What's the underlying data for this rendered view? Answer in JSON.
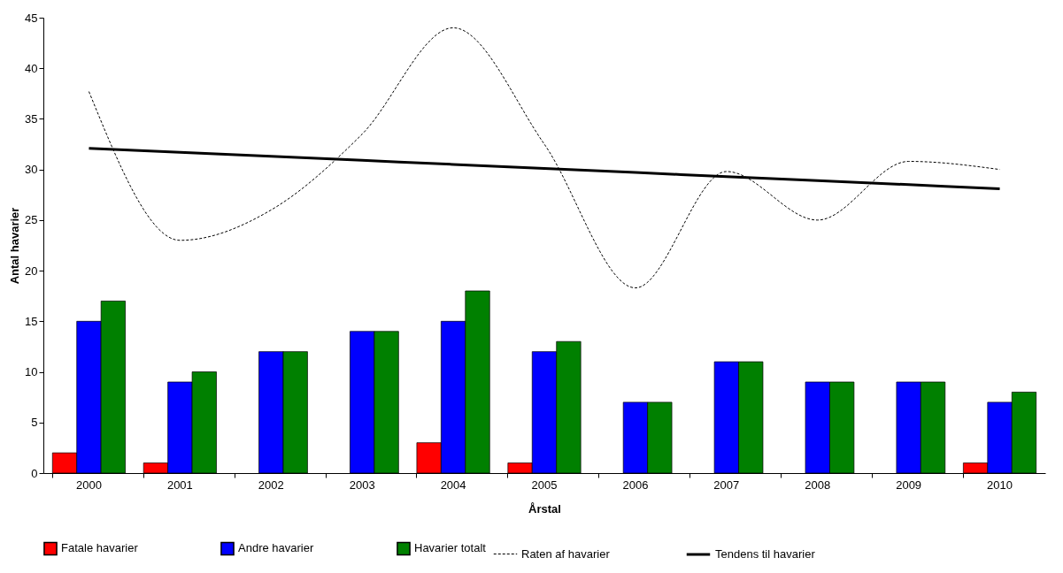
{
  "chart_data": {
    "type": "bar",
    "xlabel": "Årstal",
    "ylabel": "Antal havarier",
    "categories": [
      "2000",
      "2001",
      "2002",
      "2003",
      "2004",
      "2005",
      "2006",
      "2007",
      "2008",
      "2009",
      "2010"
    ],
    "series": [
      {
        "name": "Fatale havarier",
        "color": "#ff0000",
        "values": [
          2,
          1,
          null,
          null,
          3,
          1,
          null,
          null,
          null,
          null,
          1
        ]
      },
      {
        "name": "Andre havarier",
        "color": "#0000ff",
        "values": [
          15,
          9,
          12,
          14,
          15,
          12,
          7,
          11,
          9,
          9,
          7
        ]
      },
      {
        "name": "Havarier totalt",
        "color": "#008000",
        "values": [
          17,
          10,
          12,
          14,
          18,
          13,
          7,
          11,
          9,
          9,
          8
        ]
      },
      {
        "name": "Raten af havarier",
        "type": "line",
        "line_style": "dashed",
        "color": "#000000",
        "values": [
          37.7,
          23,
          26,
          33.5,
          44,
          32.5,
          18.3,
          29.8,
          25,
          30.8,
          30
        ]
      },
      {
        "name": "Tendens til havarier",
        "type": "line",
        "line_style": "solid",
        "color": "#000000",
        "values": [
          32.1,
          31.7,
          31.3,
          30.9,
          30.5,
          30.1,
          29.7,
          29.3,
          28.9,
          28.5,
          28.1
        ]
      }
    ],
    "ylim": [
      0,
      45
    ],
    "yticks": [
      0,
      5,
      10,
      15,
      20,
      25,
      30,
      35,
      40,
      45
    ],
    "grid": false,
    "legend": "bottom",
    "marker": "none"
  }
}
